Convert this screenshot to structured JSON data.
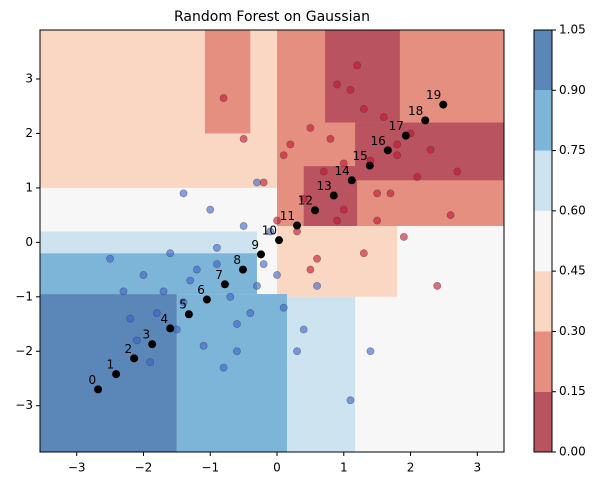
{
  "chart_data": {
    "type": "contour",
    "title": "Random Forest on Gaussian",
    "xlim": [
      -3.55,
      3.4
    ],
    "ylim": [
      -3.85,
      3.9
    ],
    "xticks": [
      {
        "value": -3,
        "label": "−3"
      },
      {
        "value": -2,
        "label": "−2"
      },
      {
        "value": -1,
        "label": "−1"
      },
      0,
      1,
      2,
      3
    ],
    "yticks": [
      {
        "value": -3,
        "label": "−3"
      },
      {
        "value": -2,
        "label": "−2"
      },
      {
        "value": -1,
        "label": "−1"
      },
      0,
      1,
      2,
      3
    ],
    "regions": [
      {
        "x0": -3.55,
        "x1": 3.4,
        "y0": -3.85,
        "y1": 3.9,
        "value": 0.5
      },
      {
        "x0": -3.55,
        "x1": 3.4,
        "y0": 1.0,
        "y1": 3.9,
        "value": 0.4
      },
      {
        "x0": -1.08,
        "x1": -0.4,
        "y0": 2.0,
        "y1": 3.9,
        "value": 0.2
      },
      {
        "x0": 0.0,
        "x1": 3.4,
        "y0": 0.3,
        "y1": 3.9,
        "value": 0.2
      },
      {
        "x0": 0.72,
        "x1": 1.84,
        "y0": 2.2,
        "y1": 3.9,
        "value": 0.1
      },
      {
        "x0": 1.17,
        "x1": 3.4,
        "y0": 1.14,
        "y1": 2.2,
        "value": 0.1
      },
      {
        "x0": 0.4,
        "x1": 1.2,
        "y0": 0.3,
        "y1": 1.4,
        "value": 0.1
      },
      {
        "x0": 0.0,
        "x1": 1.8,
        "y0": -1.0,
        "y1": 0.3,
        "value": 0.4
      },
      {
        "x0": -3.55,
        "x1": -0.3,
        "y0": -0.2,
        "y1": 0.2,
        "value": 0.7
      },
      {
        "x0": -3.55,
        "x1": -0.3,
        "y0": -0.95,
        "y1": -0.2,
        "value": 0.8
      },
      {
        "x0": -3.55,
        "x1": -1.5,
        "y0": -3.85,
        "y1": -0.95,
        "value": 0.95
      },
      {
        "x0": -1.5,
        "x1": 0.15,
        "y0": -3.85,
        "y1": -0.95,
        "value": 0.8
      },
      {
        "x0": 0.15,
        "x1": 1.17,
        "y0": -3.85,
        "y1": -1.0,
        "value": 0.7
      }
    ],
    "series": [
      {
        "color": "#c8102e",
        "x": [
          1.3,
          0.5,
          1.8,
          2.1,
          0.9,
          1.5,
          0.2,
          2.6,
          1.1,
          0.7,
          1.9,
          1.6,
          0.4,
          2.4,
          1.3,
          0.8,
          1.0,
          2.0,
          1.4,
          0.6,
          -0.2,
          0.3,
          1.7,
          2.3,
          1.2,
          0.9,
          -0.5,
          0.1,
          1.5,
          2.7,
          0.5,
          1.8,
          -0.8,
          0.0,
          1.0
        ],
        "values": [
          2.45,
          2.1,
          1.6,
          1.2,
          0.4,
          0.9,
          1.8,
          0.5,
          2.8,
          1.3,
          0.1,
          2.3,
          0.8,
          -0.8,
          -0.2,
          1.9,
          0.6,
          2.0,
          1.5,
          -0.3,
          1.1,
          0.2,
          0.9,
          1.7,
          3.25,
          2.9,
          1.9,
          1.6,
          0.4,
          1.3,
          -0.5,
          1.8,
          2.65,
          0.4,
          1.45
        ]
      },
      {
        "color": "#3a63cc",
        "x": [
          -1.4,
          -0.6,
          -2.0,
          -0.9,
          -1.8,
          -0.3,
          -1.1,
          -2.3,
          -0.5,
          -1.6,
          0.1,
          -0.8,
          -1.3,
          0.4,
          -2.1,
          -0.2,
          -1.0,
          -1.5,
          -0.7,
          0.6,
          -1.9,
          -1.2,
          -0.4,
          0.3,
          -2.5,
          -1.7,
          1.1,
          -0.9,
          0.0,
          -1.4,
          -0.6,
          1.4,
          -0.1,
          -2.2,
          -0.3
        ],
        "values": [
          -1.1,
          -1.5,
          -0.6,
          -0.4,
          -1.3,
          -0.8,
          -1.9,
          -0.9,
          0.3,
          -0.2,
          -1.2,
          -2.3,
          -0.7,
          -1.6,
          -1.8,
          -0.4,
          0.6,
          -1.6,
          -1.0,
          -0.8,
          -2.2,
          -0.5,
          -1.3,
          -2.0,
          -0.3,
          -0.9,
          -2.9,
          -0.1,
          -0.6,
          0.9,
          -2.0,
          -2.0,
          0.2,
          -1.4,
          1.1
        ]
      }
    ],
    "annotations": [
      {
        "text": "0",
        "x": -2.68,
        "y": -2.7
      },
      {
        "text": "1",
        "x": -2.41,
        "y": -2.42
      },
      {
        "text": "2",
        "x": -2.14,
        "y": -2.13
      },
      {
        "text": "3",
        "x": -1.87,
        "y": -1.87
      },
      {
        "text": "4",
        "x": -1.6,
        "y": -1.58
      },
      {
        "text": "5",
        "x": -1.32,
        "y": -1.32
      },
      {
        "text": "6",
        "x": -1.05,
        "y": -1.05
      },
      {
        "text": "7",
        "x": -0.78,
        "y": -0.77
      },
      {
        "text": "8",
        "x": -0.51,
        "y": -0.5
      },
      {
        "text": "9",
        "x": -0.24,
        "y": -0.22
      },
      {
        "text": "10",
        "x": 0.03,
        "y": 0.04
      },
      {
        "text": "11",
        "x": 0.3,
        "y": 0.31
      },
      {
        "text": "12",
        "x": 0.57,
        "y": 0.59
      },
      {
        "text": "13",
        "x": 0.85,
        "y": 0.86
      },
      {
        "text": "14",
        "x": 1.12,
        "y": 1.14
      },
      {
        "text": "15",
        "x": 1.39,
        "y": 1.41
      },
      {
        "text": "16",
        "x": 1.66,
        "y": 1.69
      },
      {
        "text": "17",
        "x": 1.93,
        "y": 1.96
      },
      {
        "text": "18",
        "x": 2.22,
        "y": 2.24
      },
      {
        "text": "19",
        "x": 2.49,
        "y": 2.53
      }
    ],
    "colorbar": {
      "levels": [
        0,
        0.15,
        0.3,
        0.45,
        0.6,
        0.75,
        0.9,
        1.05
      ],
      "colors": [
        "#b9535f",
        "#e48f7f",
        "#fad7c2",
        "#f7f7f7",
        "#cde3ef",
        "#7db5d9",
        "#5b86b8"
      ],
      "ticks": [
        {
          "value": 0,
          "label": "0.00"
        },
        {
          "value": 0.15,
          "label": "0.15"
        },
        {
          "value": 0.3,
          "label": "0.30"
        },
        {
          "value": 0.45,
          "label": "0.45"
        },
        {
          "value": 0.6,
          "label": "0.60"
        },
        {
          "value": 0.75,
          "label": "0.75"
        },
        {
          "value": 0.9,
          "label": "0.90"
        },
        {
          "value": 1.05,
          "label": "1.05"
        }
      ]
    }
  }
}
